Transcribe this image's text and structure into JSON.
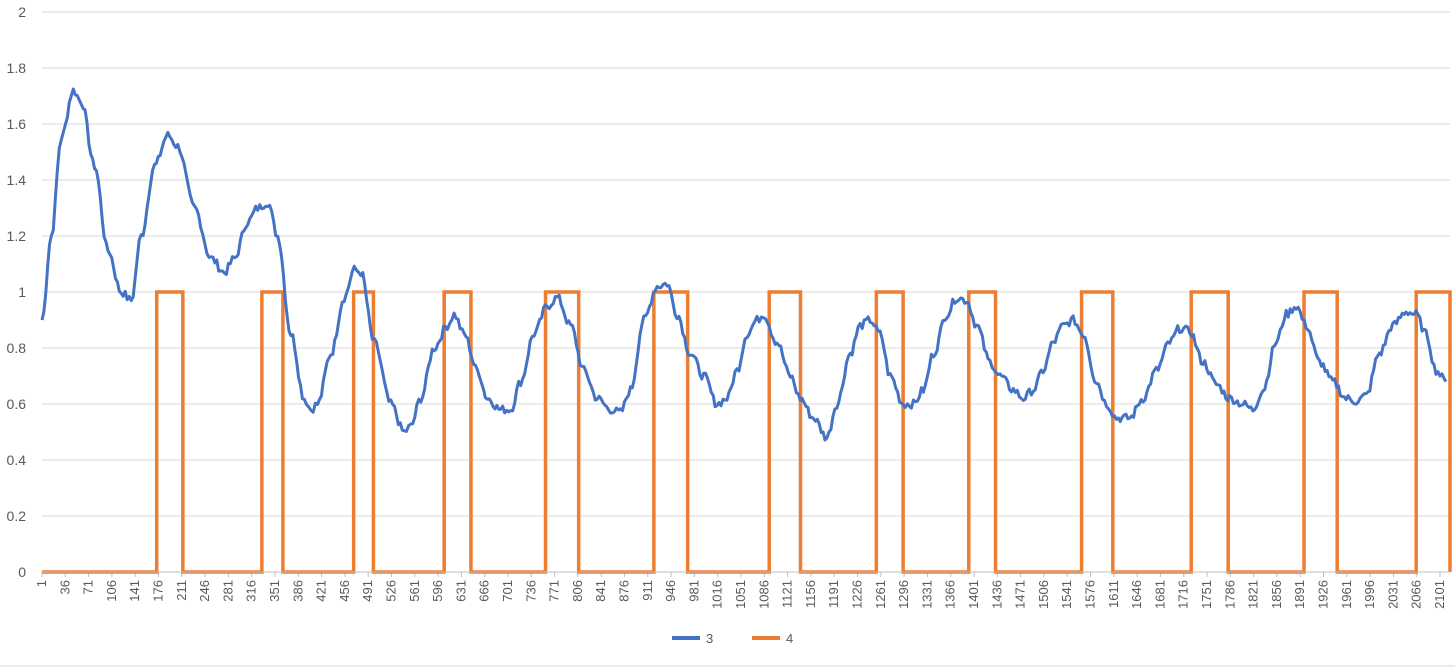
{
  "chart_data": {
    "type": "line",
    "title": "",
    "xlabel": "",
    "ylabel": "",
    "x_range": [
      1,
      2116
    ],
    "ylim": [
      0,
      2
    ],
    "y_ticks": [
      "0",
      "0.2",
      "0.4",
      "0.6",
      "0.8",
      "1",
      "1.2",
      "1.4",
      "1.6",
      "1.8",
      "2"
    ],
    "x_ticks": [
      "1",
      "36",
      "71",
      "106",
      "141",
      "176",
      "211",
      "246",
      "281",
      "316",
      "351",
      "386",
      "421",
      "456",
      "491",
      "526",
      "561",
      "596",
      "631",
      "666",
      "701",
      "736",
      "771",
      "806",
      "841",
      "876",
      "911",
      "946",
      "981",
      "1016",
      "1051",
      "1086",
      "1121",
      "1156",
      "1191",
      "1226",
      "1261",
      "1296",
      "1331",
      "1366",
      "1401",
      "1436",
      "1471",
      "1506",
      "1541",
      "1576",
      "1611",
      "1646",
      "1681",
      "1716",
      "1751",
      "1786",
      "1821",
      "1856",
      "1891",
      "1926",
      "1961",
      "1996",
      "2031",
      "2066",
      "2101"
    ],
    "grid": true,
    "legend_position": "bottom",
    "series": [
      {
        "name": "3",
        "color": "#4472C4",
        "points": [
          [
            1,
            0.9
          ],
          [
            15,
            1.2
          ],
          [
            30,
            1.55
          ],
          [
            48,
            1.72
          ],
          [
            60,
            1.68
          ],
          [
            80,
            1.45
          ],
          [
            100,
            1.15
          ],
          [
            120,
            1.0
          ],
          [
            135,
            0.97
          ],
          [
            150,
            1.2
          ],
          [
            170,
            1.45
          ],
          [
            190,
            1.56
          ],
          [
            205,
            1.52
          ],
          [
            230,
            1.3
          ],
          [
            255,
            1.12
          ],
          [
            275,
            1.07
          ],
          [
            290,
            1.12
          ],
          [
            310,
            1.25
          ],
          [
            325,
            1.3
          ],
          [
            340,
            1.32
          ],
          [
            355,
            1.2
          ],
          [
            375,
            0.85
          ],
          [
            395,
            0.62
          ],
          [
            405,
            0.58
          ],
          [
            415,
            0.6
          ],
          [
            435,
            0.78
          ],
          [
            455,
            0.98
          ],
          [
            470,
            1.08
          ],
          [
            480,
            1.07
          ],
          [
            500,
            0.82
          ],
          [
            525,
            0.6
          ],
          [
            545,
            0.5
          ],
          [
            555,
            0.52
          ],
          [
            570,
            0.62
          ],
          [
            590,
            0.8
          ],
          [
            610,
            0.88
          ],
          [
            620,
            0.92
          ],
          [
            635,
            0.85
          ],
          [
            655,
            0.72
          ],
          [
            670,
            0.62
          ],
          [
            690,
            0.58
          ],
          [
            705,
            0.58
          ],
          [
            720,
            0.68
          ],
          [
            740,
            0.85
          ],
          [
            760,
            0.95
          ],
          [
            775,
            0.98
          ],
          [
            795,
            0.88
          ],
          [
            815,
            0.72
          ],
          [
            835,
            0.62
          ],
          [
            855,
            0.58
          ],
          [
            870,
            0.57
          ],
          [
            885,
            0.65
          ],
          [
            905,
            0.9
          ],
          [
            925,
            1.02
          ],
          [
            940,
            1.03
          ],
          [
            955,
            0.92
          ],
          [
            975,
            0.78
          ],
          [
            995,
            0.7
          ],
          [
            1015,
            0.6
          ],
          [
            1030,
            0.62
          ],
          [
            1045,
            0.72
          ],
          [
            1060,
            0.85
          ],
          [
            1075,
            0.9
          ],
          [
            1085,
            0.92
          ],
          [
            1105,
            0.82
          ],
          [
            1125,
            0.7
          ],
          [
            1140,
            0.62
          ],
          [
            1160,
            0.55
          ],
          [
            1180,
            0.48
          ],
          [
            1195,
            0.6
          ],
          [
            1215,
            0.78
          ],
          [
            1230,
            0.88
          ],
          [
            1245,
            0.9
          ],
          [
            1260,
            0.85
          ],
          [
            1275,
            0.7
          ],
          [
            1295,
            0.6
          ],
          [
            1310,
            0.6
          ],
          [
            1325,
            0.65
          ],
          [
            1340,
            0.78
          ],
          [
            1360,
            0.92
          ],
          [
            1375,
            0.98
          ],
          [
            1390,
            0.97
          ],
          [
            1405,
            0.88
          ],
          [
            1425,
            0.75
          ],
          [
            1440,
            0.7
          ],
          [
            1460,
            0.65
          ],
          [
            1475,
            0.62
          ],
          [
            1490,
            0.65
          ],
          [
            1505,
            0.72
          ],
          [
            1520,
            0.82
          ],
          [
            1535,
            0.88
          ],
          [
            1550,
            0.9
          ],
          [
            1565,
            0.85
          ],
          [
            1585,
            0.68
          ],
          [
            1600,
            0.6
          ],
          [
            1615,
            0.55
          ],
          [
            1635,
            0.55
          ],
          [
            1655,
            0.62
          ],
          [
            1675,
            0.72
          ],
          [
            1695,
            0.82
          ],
          [
            1710,
            0.87
          ],
          [
            1725,
            0.86
          ],
          [
            1745,
            0.75
          ],
          [
            1765,
            0.67
          ],
          [
            1785,
            0.62
          ],
          [
            1805,
            0.6
          ],
          [
            1820,
            0.58
          ],
          [
            1835,
            0.65
          ],
          [
            1855,
            0.82
          ],
          [
            1870,
            0.92
          ],
          [
            1885,
            0.95
          ],
          [
            1900,
            0.88
          ],
          [
            1920,
            0.75
          ],
          [
            1940,
            0.68
          ],
          [
            1960,
            0.62
          ],
          [
            1975,
            0.61
          ],
          [
            1990,
            0.63
          ],
          [
            2010,
            0.78
          ],
          [
            2030,
            0.88
          ],
          [
            2050,
            0.93
          ],
          [
            2065,
            0.92
          ],
          [
            2080,
            0.85
          ],
          [
            2095,
            0.72
          ],
          [
            2110,
            0.68
          ]
        ]
      },
      {
        "name": "4",
        "color": "#ED7D31",
        "pulses": [
          [
            181,
            222
          ],
          [
            346,
            379
          ],
          [
            490,
            521
          ],
          [
            632,
            674
          ],
          [
            791,
            843
          ],
          [
            961,
            1014
          ],
          [
            1142,
            1191
          ],
          [
            1310,
            1352
          ],
          [
            1455,
            1497
          ],
          [
            1632,
            1681
          ],
          [
            1804,
            1862
          ],
          [
            1981,
            2033
          ],
          [
            2157,
            2210
          ]
        ]
      }
    ]
  }
}
